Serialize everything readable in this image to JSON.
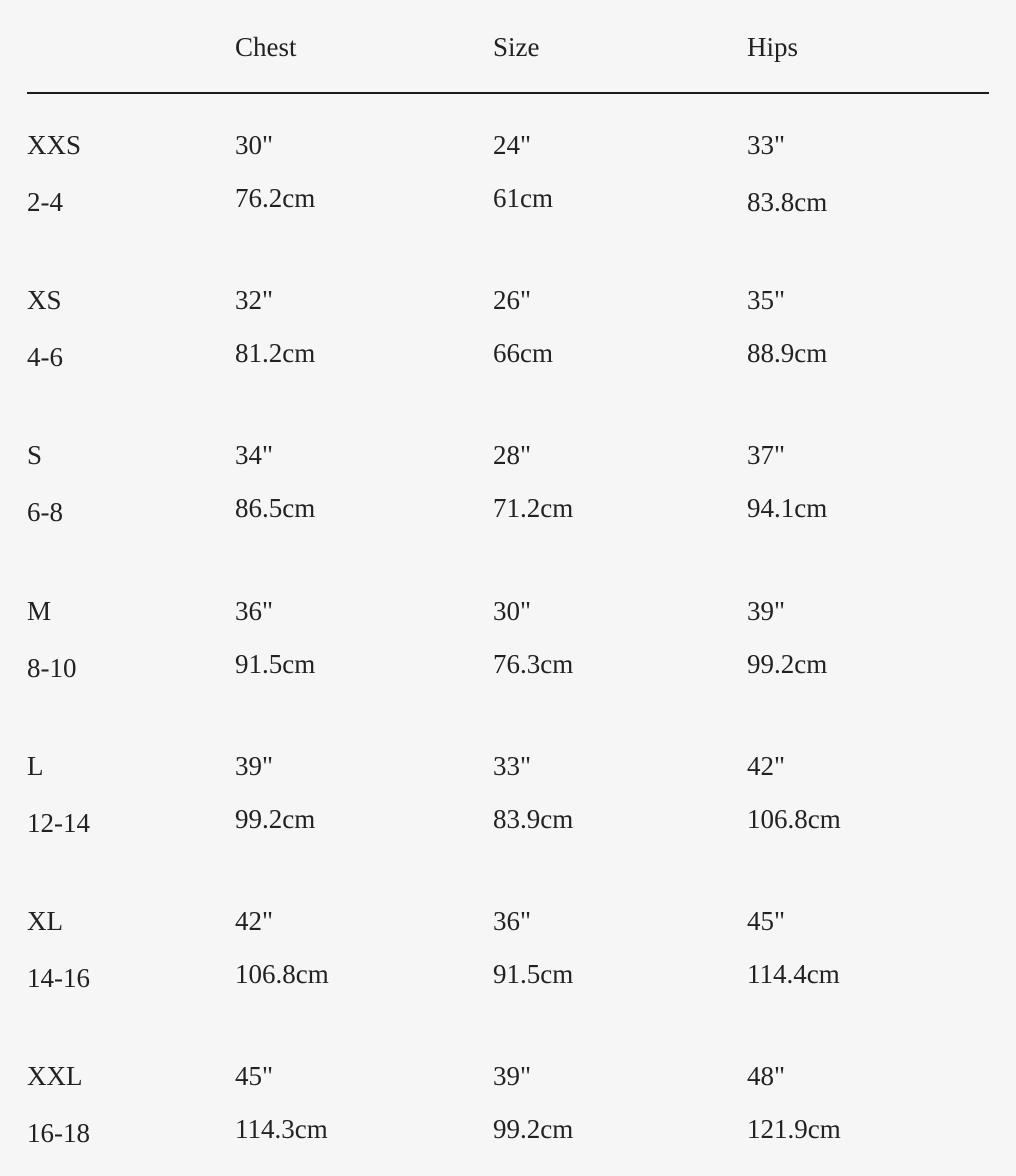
{
  "headers": [
    "",
    "Chest",
    "Size",
    "Hips"
  ],
  "rows": [
    {
      "size": "XXS",
      "range": "2-4",
      "chest_in": "30\"",
      "chest_cm": "76.2cm",
      "size_in": "24\"",
      "size_cm": "61cm",
      "hips_in": "33\"",
      "hips_cm": "83.8cm"
    },
    {
      "size": "XS",
      "range": "4-6",
      "chest_in": "32\"",
      "chest_cm": "81.2cm",
      "size_in": "26\"",
      "size_cm": "66cm",
      "hips_in": "35\"",
      "hips_cm": "88.9cm"
    },
    {
      "size": "S",
      "range": "6-8",
      "chest_in": "34\"",
      "chest_cm": "86.5cm",
      "size_in": "28\"",
      "size_cm": "71.2cm",
      "hips_in": "37\"",
      "hips_cm": "94.1cm"
    },
    {
      "size": "M",
      "range": "8-10",
      "chest_in": "36\"",
      "chest_cm": "91.5cm",
      "size_in": "30\"",
      "size_cm": "76.3cm",
      "hips_in": "39\"",
      "hips_cm": "99.2cm"
    },
    {
      "size": "L",
      "range": "12-14",
      "chest_in": "39\"",
      "chest_cm": "99.2cm",
      "size_in": "33\"",
      "size_cm": "83.9cm",
      "hips_in": "42\"",
      "hips_cm": "106.8cm"
    },
    {
      "size": "XL",
      "range": "14-16",
      "chest_in": "42\"",
      "chest_cm": "106.8cm",
      "size_in": "36\"",
      "size_cm": "91.5cm",
      "hips_in": "45\"",
      "hips_cm": "114.4cm"
    },
    {
      "size": "XXL",
      "range": "16-18",
      "chest_in": "45\"",
      "chest_cm": "114.3cm",
      "size_in": "39\"",
      "size_cm": "99.2cm",
      "hips_in": "48\"",
      "hips_cm": "121.9cm"
    }
  ]
}
